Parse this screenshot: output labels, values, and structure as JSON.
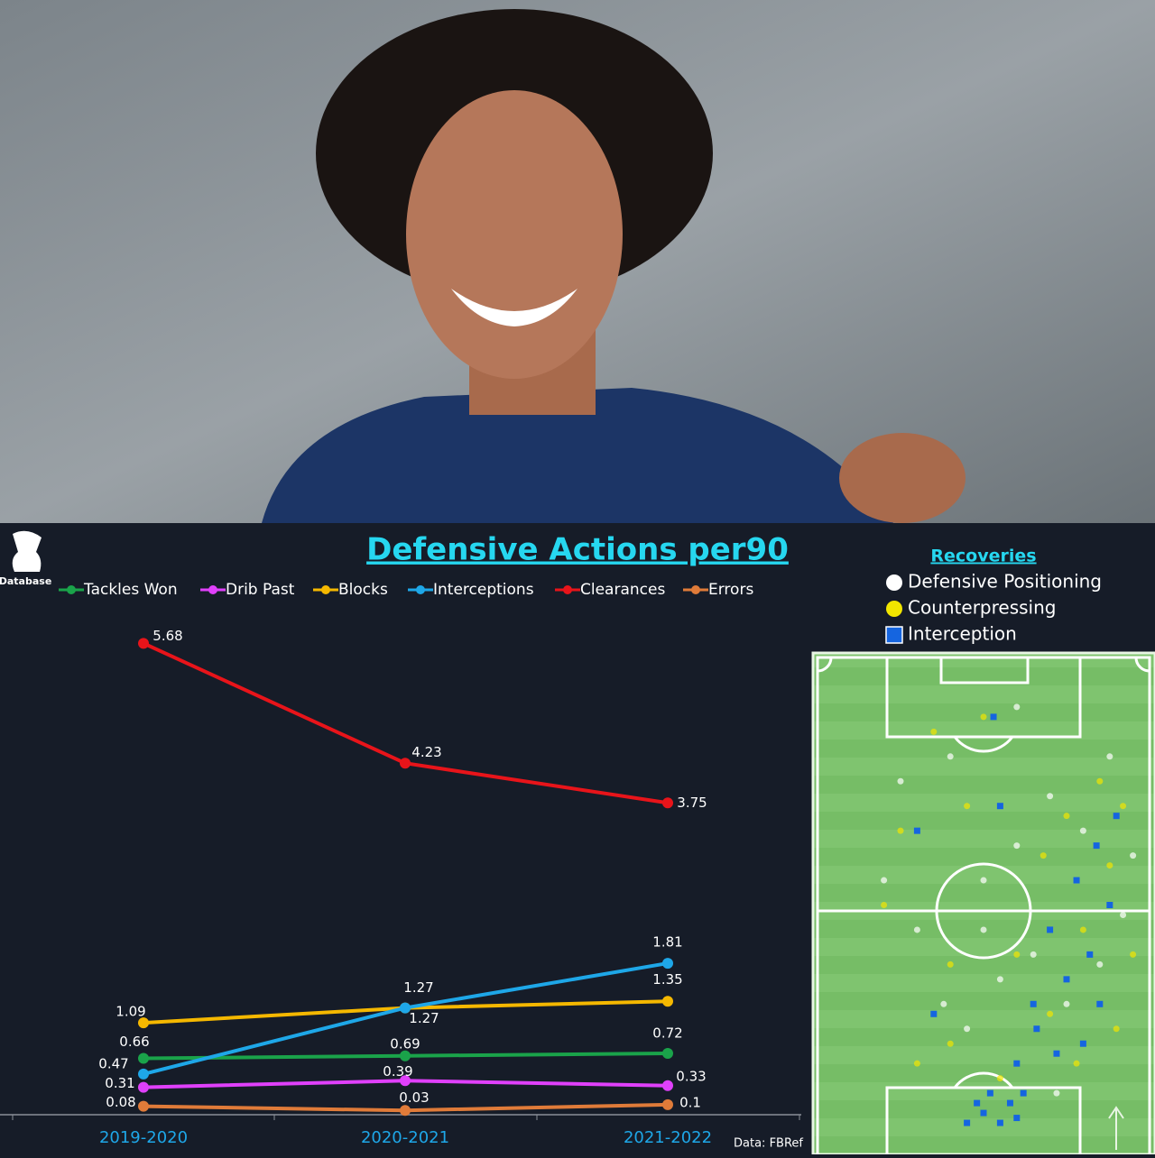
{
  "chart_data": [
    {
      "type": "line",
      "title": "Defensive Actions per90",
      "source": "Data: FBRef",
      "logo": "Database",
      "categories": [
        "2019-2020",
        "2020-2021",
        "2021-2022"
      ],
      "ylim": [
        0,
        6
      ],
      "series": [
        {
          "name": "Tackles Won",
          "color": "#1aa34a",
          "values": [
            0.66,
            0.69,
            0.72
          ]
        },
        {
          "name": "Drib Past",
          "color": "#e040fb",
          "values": [
            0.31,
            0.39,
            0.33
          ]
        },
        {
          "name": "Blocks",
          "color": "#f5b800",
          "values": [
            1.09,
            1.27,
            1.35
          ]
        },
        {
          "name": "Interceptions",
          "color": "#1ea7e8",
          "values": [
            0.47,
            1.27,
            1.81
          ]
        },
        {
          "name": "Clearances",
          "color": "#e8141a",
          "values": [
            5.68,
            4.23,
            3.75
          ]
        },
        {
          "name": "Errors",
          "color": "#e07b39",
          "values": [
            0.08,
            0.03,
            0.1
          ]
        }
      ]
    },
    {
      "type": "scatter",
      "title": "Recoveries",
      "xlim": [
        0,
        100
      ],
      "ylim": [
        0,
        100
      ],
      "series": [
        {
          "name": "Defensive Positioning",
          "color": "#ffffff",
          "x": [
            38,
            55,
            65,
            75,
            85,
            92,
            80,
            70,
            50,
            60,
            30,
            20,
            45,
            88,
            95,
            25,
            60,
            40,
            72,
            50
          ],
          "y": [
            30,
            35,
            40,
            30,
            38,
            48,
            65,
            72,
            55,
            62,
            45,
            55,
            25,
            80,
            60,
            75,
            90,
            80,
            12,
            45
          ]
        },
        {
          "name": "Counterpressing",
          "color": "#f2e600",
          "x": [
            30,
            40,
            70,
            80,
            88,
            75,
            92,
            85,
            40,
            60,
            25,
            45,
            95,
            78,
            55,
            68,
            50,
            35,
            90,
            20
          ],
          "y": [
            18,
            22,
            28,
            45,
            58,
            68,
            70,
            75,
            38,
            40,
            65,
            70,
            40,
            18,
            15,
            60,
            88,
            85,
            25,
            50
          ]
        },
        {
          "name": "Interception",
          "color": "#1565e0",
          "x": [
            50,
            55,
            48,
            60,
            52,
            58,
            45,
            62,
            66,
            72,
            80,
            85,
            75,
            82,
            70,
            88,
            78,
            84,
            90,
            65,
            60,
            35,
            30,
            55,
            53
          ],
          "y": [
            8,
            6,
            10,
            7,
            12,
            10,
            6,
            12,
            25,
            20,
            22,
            30,
            35,
            40,
            45,
            50,
            55,
            62,
            68,
            30,
            18,
            28,
            65,
            70,
            88
          ]
        }
      ]
    }
  ]
}
